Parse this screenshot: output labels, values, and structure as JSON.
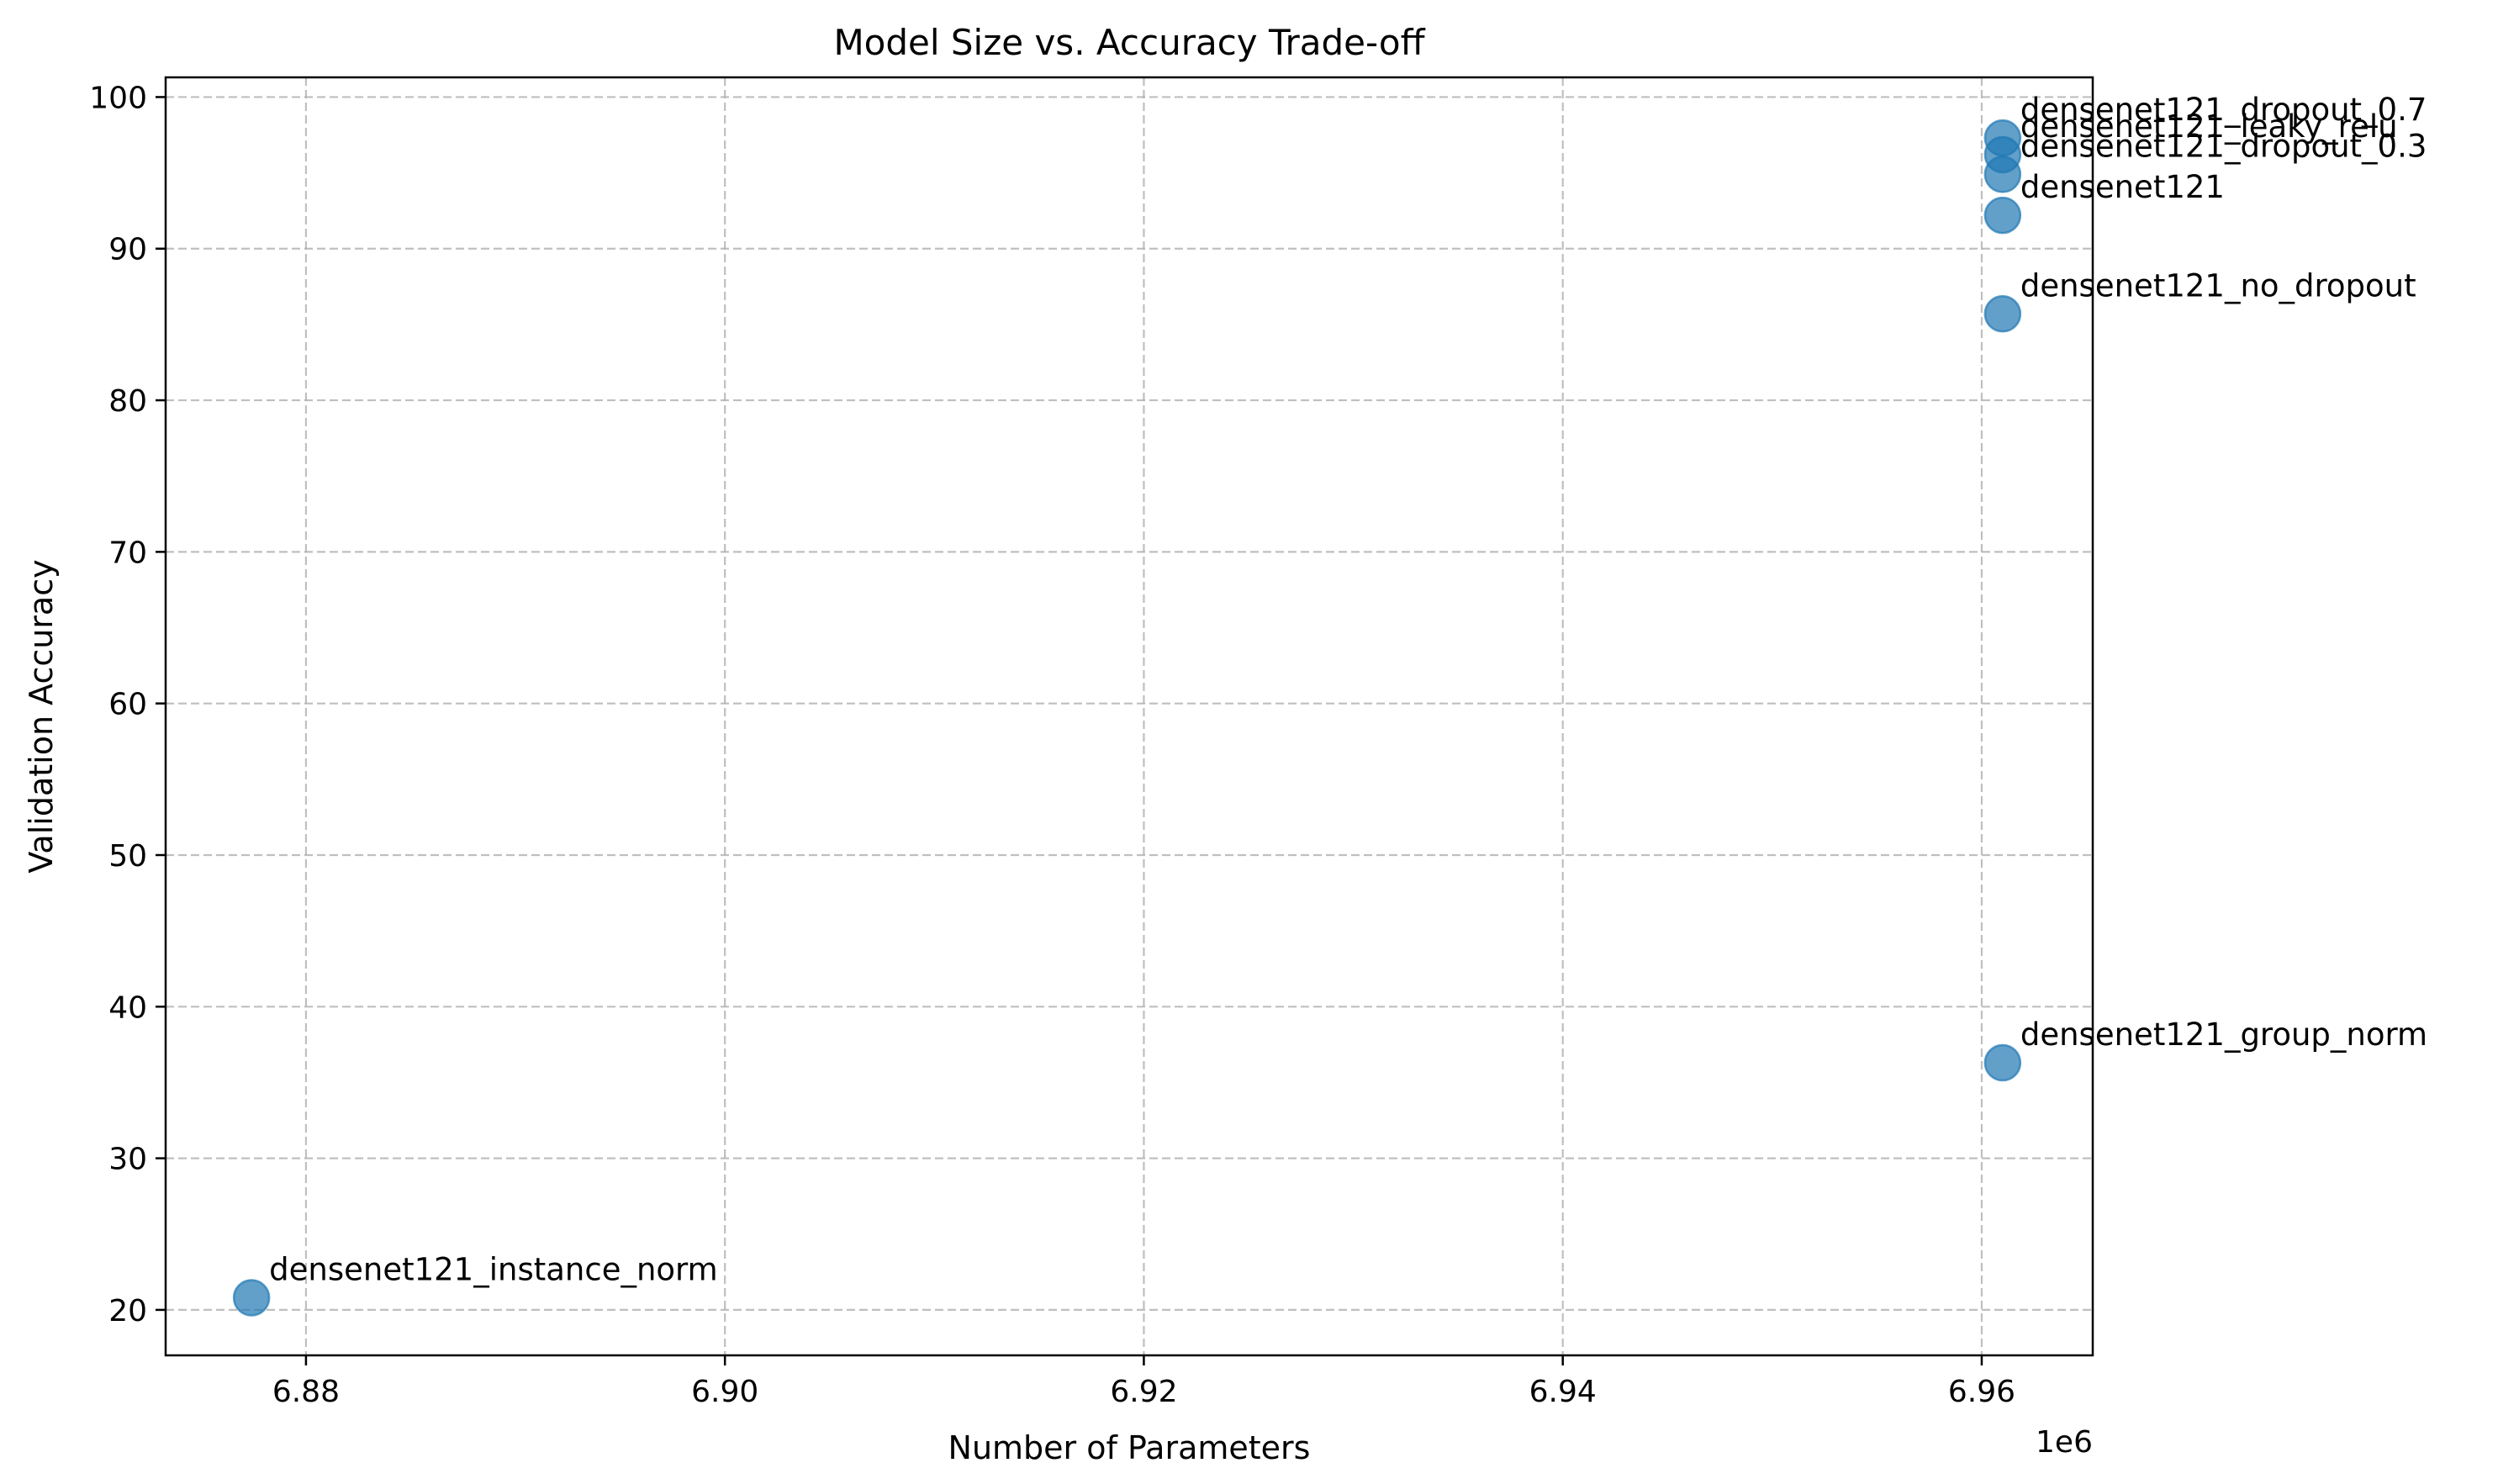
{
  "chart_data": {
    "type": "scatter",
    "title": "Model Size vs. Accuracy Trade-off",
    "xlabel": "Number of Parameters",
    "ylabel": "Validation Accuracy",
    "x_offset_label": "1e6",
    "x_scale_factor": 1000000,
    "xlim": [
      6.8733,
      6.9653
    ],
    "ylim": [
      17.0,
      101.3
    ],
    "x_ticks": [
      6.88,
      6.9,
      6.92,
      6.94,
      6.96
    ],
    "x_tick_labels": [
      "6.88",
      "6.90",
      "6.92",
      "6.94",
      "6.96"
    ],
    "y_ticks": [
      20,
      30,
      40,
      50,
      60,
      70,
      80,
      90,
      100
    ],
    "y_tick_labels": [
      "20",
      "30",
      "40",
      "50",
      "60",
      "70",
      "80",
      "90",
      "100"
    ],
    "grid": true,
    "marker_color": "#1f77b4",
    "marker_alpha": 0.7,
    "points": [
      {
        "label": "densenet121_dropout_0.7",
        "x": 6.961,
        "y": 97.3
      },
      {
        "label": "densenet121_leaky_relu",
        "x": 6.961,
        "y": 96.2
      },
      {
        "label": "densenet121_dropout_0.3",
        "x": 6.961,
        "y": 94.9
      },
      {
        "label": "densenet121",
        "x": 6.961,
        "y": 92.2
      },
      {
        "label": "densenet121_no_dropout",
        "x": 6.961,
        "y": 85.7
      },
      {
        "label": "densenet121_group_norm",
        "x": 6.961,
        "y": 36.3
      },
      {
        "label": "densenet121_instance_norm",
        "x": 6.8774,
        "y": 20.8
      }
    ]
  }
}
